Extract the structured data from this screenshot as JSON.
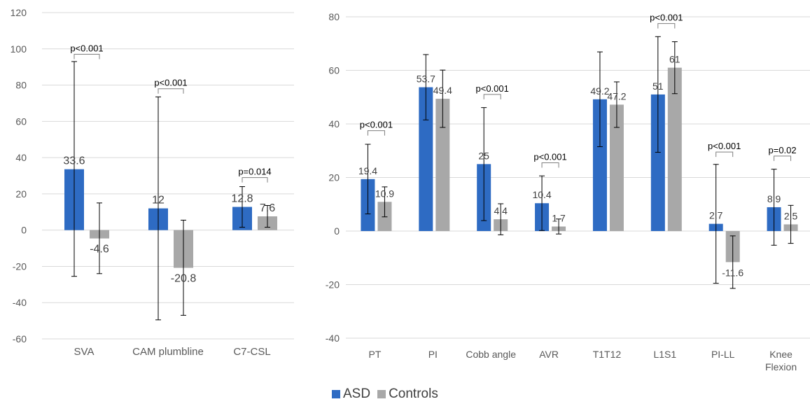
{
  "colors": {
    "asd": "#2e6bc3",
    "controls": "#a8a8a8",
    "grid": "#d9d9d9",
    "text": "#595959",
    "error": "#000000"
  },
  "legend": {
    "position": "bottom",
    "items": [
      {
        "key": "asd",
        "label": "ASD"
      },
      {
        "key": "controls",
        "label": "Controls"
      }
    ]
  },
  "chart_data": [
    {
      "type": "bar",
      "grid": true,
      "ylim": [
        -60,
        120
      ],
      "yticks": [
        -60,
        -40,
        -20,
        0,
        20,
        40,
        60,
        80,
        100,
        120
      ],
      "categories": [
        "SVA",
        "CAM plumbline",
        "C7-CSL"
      ],
      "series": [
        {
          "name": "ASD",
          "color_key": "asd",
          "values": [
            33.6,
            12,
            12.8
          ],
          "labels": [
            "33.6",
            "12",
            "12.8"
          ],
          "err_low": [
            -25.5,
            -49.5,
            1.6
          ],
          "err_high": [
            93,
            73.5,
            24
          ]
        },
        {
          "name": "Controls",
          "color_key": "controls",
          "values": [
            -4.6,
            -20.8,
            7.6
          ],
          "labels": [
            "-4.6",
            "-20.8",
            "7.6"
          ],
          "err_low": [
            -24,
            -47,
            1.6
          ],
          "err_high": [
            15,
            5.5,
            13.6
          ]
        }
      ],
      "annotations": [
        {
          "category": 0,
          "text": "p<0.001",
          "y": 97
        },
        {
          "category": 1,
          "text": "p<0.001",
          "y": 78
        },
        {
          "category": 2,
          "text": "p=0.014",
          "y": 29
        }
      ]
    },
    {
      "type": "bar",
      "grid": true,
      "ylim": [
        -40,
        80
      ],
      "yticks": [
        -40,
        -20,
        0,
        20,
        40,
        60,
        80
      ],
      "categories": [
        "PT",
        "PI",
        "Cobb angle",
        "AVR",
        "T1T12",
        "L1S1",
        "PI-LL",
        "Knee Flexion"
      ],
      "series": [
        {
          "name": "ASD",
          "color_key": "asd",
          "values": [
            19.4,
            53.7,
            25,
            10.4,
            49.2,
            51,
            2.7,
            8.9
          ],
          "labels": [
            "19.4",
            "53.7",
            "25",
            "10.4",
            "49.2",
            "51",
            "2.7",
            "8.9"
          ],
          "err_low": [
            6.4,
            41.5,
            3.9,
            0.2,
            31.5,
            29.4,
            -19.5,
            -5.3
          ],
          "err_high": [
            32.4,
            65.9,
            46.1,
            20.6,
            66.9,
            72.6,
            24.9,
            23.1
          ]
        },
        {
          "name": "Controls",
          "color_key": "controls",
          "values": [
            10.9,
            49.4,
            4.4,
            1.7,
            47.2,
            61,
            -11.6,
            2.5
          ],
          "labels": [
            "10.9",
            "49.4",
            "4.4",
            "1.7",
            "47.2",
            "61",
            "-11.6",
            "2.5"
          ],
          "err_low": [
            5.3,
            38.7,
            -1.4,
            -1.1,
            38.7,
            51.3,
            -21.4,
            -4.6
          ],
          "err_high": [
            16.5,
            60.1,
            10.2,
            4.5,
            55.7,
            70.7,
            -1.8,
            9.6
          ]
        }
      ],
      "annotations": [
        {
          "category": 0,
          "text": "p<0.001",
          "y": 37.5
        },
        {
          "category": 2,
          "text": "p<0.001",
          "y": 51
        },
        {
          "category": 3,
          "text": "p<0.001",
          "y": 25.5
        },
        {
          "category": 5,
          "text": "p<0.001",
          "y": 77.5
        },
        {
          "category": 6,
          "text": "p<0.001",
          "y": 29.5
        },
        {
          "category": 7,
          "text": "p=0.02",
          "y": 28
        }
      ]
    }
  ]
}
